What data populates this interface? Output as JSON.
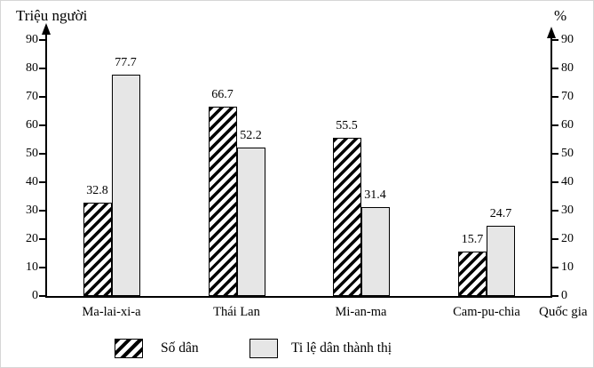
{
  "chart_data": {
    "type": "bar",
    "left_axis_title": "Triệu người",
    "right_axis_title": "%",
    "xlabel": "Quốc gia",
    "categories": [
      "Ma-lai-xi-a",
      "Thái Lan",
      "Mi-an-ma",
      "Cam-pu-chia"
    ],
    "series": [
      {
        "name": "Số dân",
        "style": "hatched",
        "values": [
          32.8,
          66.7,
          55.5,
          15.7
        ]
      },
      {
        "name": "Ti lệ dân thành thị",
        "style": "gray",
        "values": [
          77.7,
          52.2,
          31.4,
          24.7
        ]
      }
    ],
    "left_axis_ticks": [
      0,
      10,
      20,
      30,
      40,
      50,
      60,
      70,
      80,
      90
    ],
    "right_axis_ticks": [
      0,
      10,
      20,
      30,
      40,
      50,
      60,
      70,
      80,
      90
    ],
    "ylim": [
      0,
      90
    ],
    "grid": false,
    "legend_position": "bottom",
    "colors": {
      "bar_border": "#000000",
      "gray_fill": "#e6e6e6",
      "hatch_fg": "#000000",
      "hatch_bg": "#ffffff"
    }
  }
}
